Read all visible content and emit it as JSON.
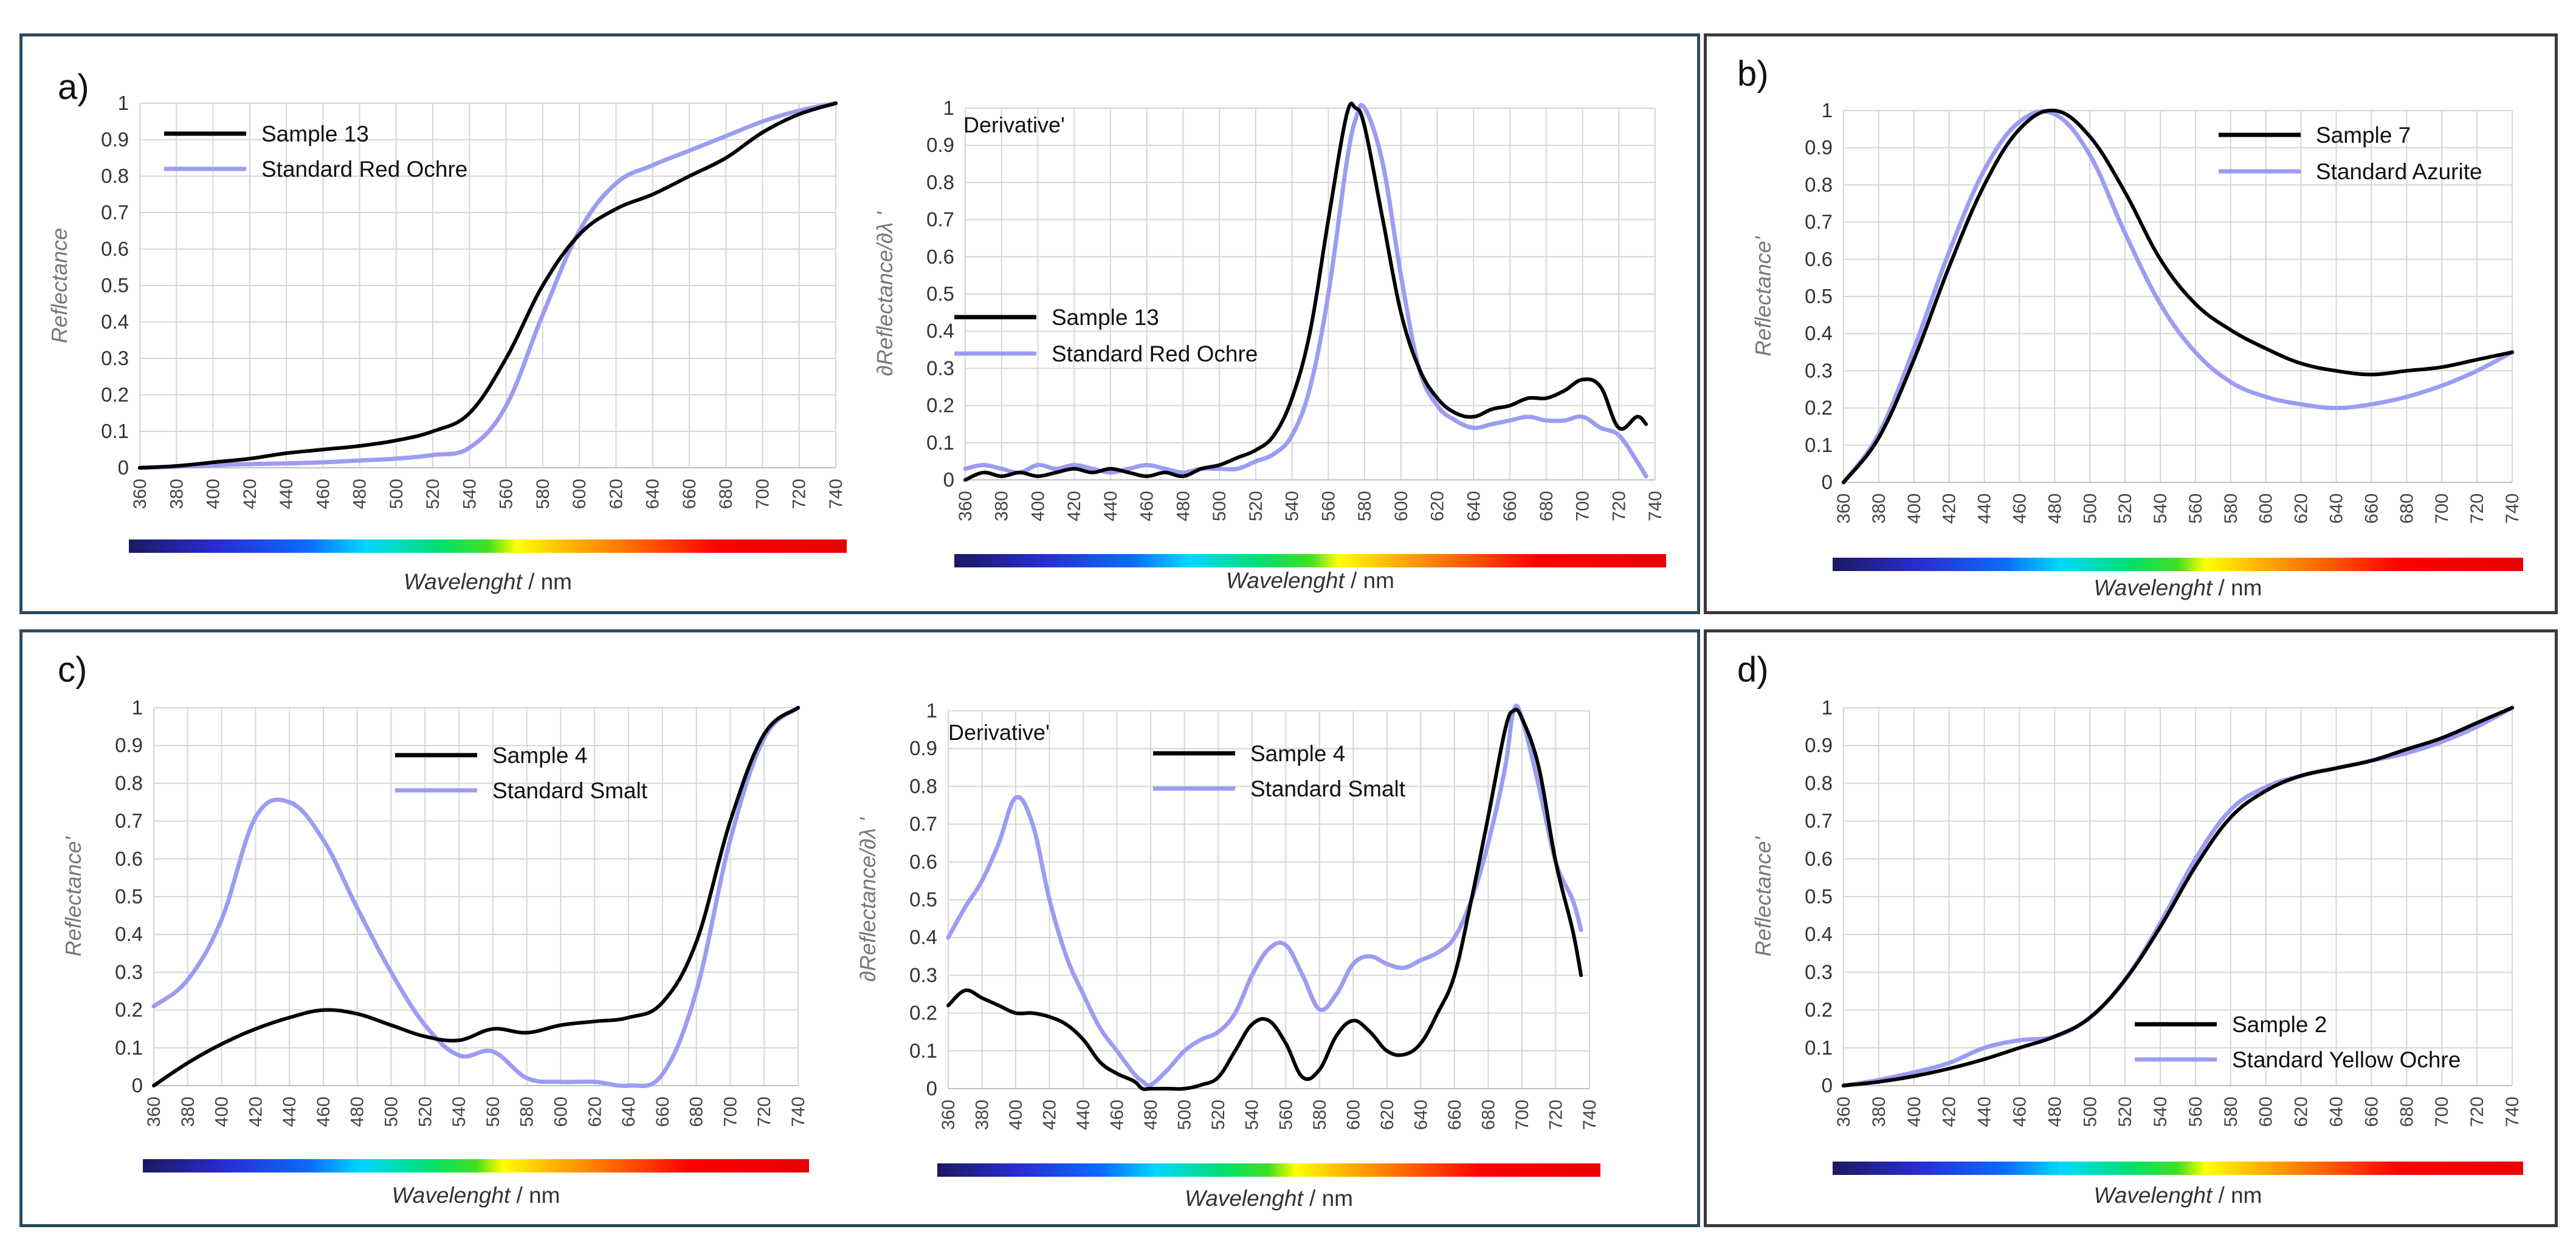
{
  "panels": [
    {
      "id": "a",
      "label": "a)"
    },
    {
      "id": "b",
      "label": "b)"
    },
    {
      "id": "c",
      "label": "c)"
    },
    {
      "id": "d",
      "label": "d)"
    }
  ],
  "colors": {
    "sample": "#000000",
    "standard": "#9c9cf2",
    "grid": "#d6d6d6"
  },
  "chart_data": [
    {
      "id": "a1",
      "type": "line",
      "ylabel": "Reflectance",
      "xlabel_em": "Wavelenght",
      "xlabel_unit": " / nm",
      "annotation": "",
      "xlim": [
        360,
        740
      ],
      "ylim": [
        0,
        1
      ],
      "x": [
        360,
        380,
        400,
        420,
        440,
        460,
        480,
        500,
        520,
        540,
        560,
        580,
        600,
        620,
        640,
        660,
        680,
        700,
        720,
        740
      ],
      "yticks": [
        "0",
        "0.1",
        "0.2",
        "0.3",
        "0.4",
        "0.5",
        "0.6",
        "0.7",
        "0.8",
        "0.9",
        "1"
      ],
      "series": [
        {
          "name": "Sample 13",
          "role": "sample",
          "values": [
            0,
            0.005,
            0.015,
            0.025,
            0.04,
            0.05,
            0.06,
            0.075,
            0.1,
            0.15,
            0.3,
            0.5,
            0.64,
            0.71,
            0.75,
            0.8,
            0.85,
            0.92,
            0.97,
            1.0
          ]
        },
        {
          "name": "Standard Red Ochre",
          "role": "standard",
          "values": [
            0,
            0.003,
            0.007,
            0.01,
            0.012,
            0.015,
            0.02,
            0.025,
            0.035,
            0.055,
            0.17,
            0.42,
            0.65,
            0.78,
            0.83,
            0.87,
            0.91,
            0.95,
            0.98,
            1.0
          ]
        }
      ]
    },
    {
      "id": "a2",
      "type": "line",
      "ylabel": "∂Reflectance/∂λ '",
      "xlabel_em": "Wavelenght",
      "xlabel_unit": " / nm",
      "annotation": "Derivative'",
      "xlim": [
        360,
        740
      ],
      "ylim": [
        0,
        1
      ],
      "x": [
        360,
        370,
        380,
        390,
        400,
        410,
        420,
        430,
        440,
        450,
        460,
        470,
        480,
        490,
        500,
        510,
        520,
        530,
        540,
        550,
        560,
        570,
        575,
        580,
        590,
        600,
        610,
        620,
        630,
        640,
        650,
        660,
        670,
        680,
        690,
        700,
        710,
        720,
        730,
        735
      ],
      "yticks": [
        "0",
        "0.1",
        "0.2",
        "0.3",
        "0.4",
        "0.5",
        "0.6",
        "0.7",
        "0.8",
        "0.9",
        "1"
      ],
      "series": [
        {
          "name": "Sample 13",
          "role": "sample",
          "values": [
            0,
            0.02,
            0.01,
            0.02,
            0.01,
            0.02,
            0.03,
            0.02,
            0.03,
            0.02,
            0.01,
            0.02,
            0.01,
            0.03,
            0.04,
            0.06,
            0.08,
            0.12,
            0.22,
            0.4,
            0.7,
            0.98,
            1.0,
            0.95,
            0.7,
            0.45,
            0.3,
            0.22,
            0.18,
            0.17,
            0.19,
            0.2,
            0.22,
            0.22,
            0.24,
            0.27,
            0.25,
            0.14,
            0.17,
            0.15
          ]
        },
        {
          "name": "Standard Red Ochre",
          "role": "standard",
          "values": [
            0.03,
            0.04,
            0.03,
            0.02,
            0.04,
            0.03,
            0.04,
            0.03,
            0.02,
            0.03,
            0.04,
            0.03,
            0.02,
            0.03,
            0.03,
            0.03,
            0.05,
            0.07,
            0.12,
            0.25,
            0.5,
            0.85,
            0.97,
            1.0,
            0.85,
            0.55,
            0.3,
            0.2,
            0.16,
            0.14,
            0.15,
            0.16,
            0.17,
            0.16,
            0.16,
            0.17,
            0.14,
            0.12,
            0.05,
            0.01
          ]
        }
      ]
    },
    {
      "id": "b",
      "type": "line",
      "ylabel": "Reflectance'",
      "xlabel_em": "Wavelenght",
      "xlabel_unit": " / nm",
      "annotation": "",
      "xlim": [
        360,
        740
      ],
      "ylim": [
        0,
        1
      ],
      "x": [
        360,
        380,
        400,
        420,
        440,
        460,
        480,
        500,
        520,
        540,
        560,
        580,
        600,
        620,
        640,
        660,
        680,
        700,
        720,
        740
      ],
      "yticks": [
        "0",
        "0.1",
        "0.2",
        "0.3",
        "0.4",
        "0.5",
        "0.6",
        "0.7",
        "0.8",
        "0.9",
        "1"
      ],
      "series": [
        {
          "name": "Sample 7",
          "role": "sample",
          "values": [
            0,
            0.12,
            0.33,
            0.58,
            0.8,
            0.95,
            1.0,
            0.93,
            0.78,
            0.6,
            0.48,
            0.41,
            0.36,
            0.32,
            0.3,
            0.29,
            0.3,
            0.31,
            0.33,
            0.35
          ]
        },
        {
          "name": "Standard Azurite",
          "role": "standard",
          "values": [
            0,
            0.13,
            0.36,
            0.62,
            0.84,
            0.97,
            0.99,
            0.88,
            0.67,
            0.48,
            0.35,
            0.27,
            0.23,
            0.21,
            0.2,
            0.21,
            0.23,
            0.26,
            0.3,
            0.35
          ]
        }
      ]
    },
    {
      "id": "c1",
      "type": "line",
      "ylabel": "Reflectance'",
      "xlabel_em": "Wavelenght",
      "xlabel_unit": " / nm",
      "annotation": "",
      "xlim": [
        360,
        740
      ],
      "ylim": [
        0,
        1
      ],
      "x": [
        360,
        380,
        400,
        420,
        440,
        460,
        480,
        500,
        520,
        540,
        560,
        580,
        600,
        620,
        640,
        660,
        680,
        700,
        720,
        740
      ],
      "yticks": [
        "0",
        "0.1",
        "0.2",
        "0.3",
        "0.4",
        "0.5",
        "0.6",
        "0.7",
        "0.8",
        "0.9",
        "1"
      ],
      "series": [
        {
          "name": "Sample 4",
          "role": "sample",
          "values": [
            0,
            0.06,
            0.11,
            0.15,
            0.18,
            0.2,
            0.19,
            0.16,
            0.13,
            0.12,
            0.15,
            0.14,
            0.16,
            0.17,
            0.18,
            0.22,
            0.38,
            0.7,
            0.93,
            1.0
          ]
        },
        {
          "name": "Standard Smalt",
          "role": "standard",
          "values": [
            0.21,
            0.28,
            0.44,
            0.71,
            0.75,
            0.65,
            0.47,
            0.3,
            0.16,
            0.08,
            0.09,
            0.02,
            0.01,
            0.01,
            0.0,
            0.03,
            0.25,
            0.65,
            0.92,
            1.0
          ]
        }
      ]
    },
    {
      "id": "c2",
      "type": "line",
      "ylabel": "∂Reflectance/∂λ '",
      "xlabel_em": "Wavelenght",
      "xlabel_unit": " / nm",
      "annotation": "Derivative'",
      "xlim": [
        360,
        740
      ],
      "ylim": [
        0,
        1
      ],
      "x": [
        360,
        370,
        380,
        390,
        400,
        410,
        420,
        430,
        440,
        450,
        460,
        470,
        475,
        480,
        490,
        500,
        510,
        520,
        530,
        540,
        550,
        560,
        570,
        580,
        590,
        600,
        610,
        620,
        630,
        640,
        650,
        660,
        670,
        680,
        690,
        695,
        700,
        710,
        720,
        730,
        735
      ],
      "yticks": [
        "0",
        "0.1",
        "0.2",
        "0.3",
        "0.4",
        "0.5",
        "0.6",
        "0.7",
        "0.8",
        "0.9",
        "1"
      ],
      "series": [
        {
          "name": "Sample 4",
          "role": "sample",
          "values": [
            0.22,
            0.26,
            0.24,
            0.22,
            0.2,
            0.2,
            0.19,
            0.17,
            0.13,
            0.07,
            0.04,
            0.02,
            0.0,
            0.0,
            0.0,
            0.0,
            0.01,
            0.03,
            0.1,
            0.17,
            0.18,
            0.12,
            0.03,
            0.05,
            0.14,
            0.18,
            0.15,
            0.1,
            0.09,
            0.12,
            0.2,
            0.3,
            0.5,
            0.72,
            0.95,
            1.0,
            0.98,
            0.85,
            0.6,
            0.42,
            0.3
          ]
        },
        {
          "name": "Standard Smalt",
          "role": "standard",
          "values": [
            0.4,
            0.48,
            0.55,
            0.65,
            0.77,
            0.7,
            0.5,
            0.35,
            0.25,
            0.16,
            0.1,
            0.04,
            0.02,
            0.01,
            0.05,
            0.1,
            0.13,
            0.15,
            0.2,
            0.3,
            0.37,
            0.38,
            0.3,
            0.21,
            0.25,
            0.33,
            0.35,
            0.33,
            0.32,
            0.34,
            0.36,
            0.4,
            0.5,
            0.65,
            0.85,
            1.0,
            0.98,
            0.8,
            0.6,
            0.5,
            0.42
          ]
        }
      ]
    },
    {
      "id": "d",
      "type": "line",
      "ylabel": "Reflectance'",
      "xlabel_em": "Wavelenght",
      "xlabel_unit": " / nm",
      "annotation": "",
      "xlim": [
        360,
        740
      ],
      "ylim": [
        0,
        1
      ],
      "x": [
        360,
        380,
        400,
        420,
        440,
        460,
        480,
        500,
        520,
        540,
        560,
        580,
        600,
        620,
        640,
        660,
        680,
        700,
        720,
        740
      ],
      "yticks": [
        "0",
        "0.1",
        "0.2",
        "0.3",
        "0.4",
        "0.5",
        "0.6",
        "0.7",
        "0.8",
        "0.9",
        "1"
      ],
      "series": [
        {
          "name": "Sample  2",
          "role": "sample",
          "values": [
            0,
            0.01,
            0.025,
            0.045,
            0.07,
            0.1,
            0.13,
            0.18,
            0.28,
            0.42,
            0.58,
            0.71,
            0.78,
            0.82,
            0.84,
            0.86,
            0.89,
            0.92,
            0.96,
            1.0
          ]
        },
        {
          "name": "Standard Yellow Ochre",
          "role": "standard",
          "values": [
            0,
            0.015,
            0.035,
            0.06,
            0.1,
            0.12,
            0.13,
            0.18,
            0.28,
            0.43,
            0.6,
            0.73,
            0.79,
            0.82,
            0.84,
            0.86,
            0.88,
            0.91,
            0.95,
            1.0
          ]
        }
      ]
    }
  ]
}
